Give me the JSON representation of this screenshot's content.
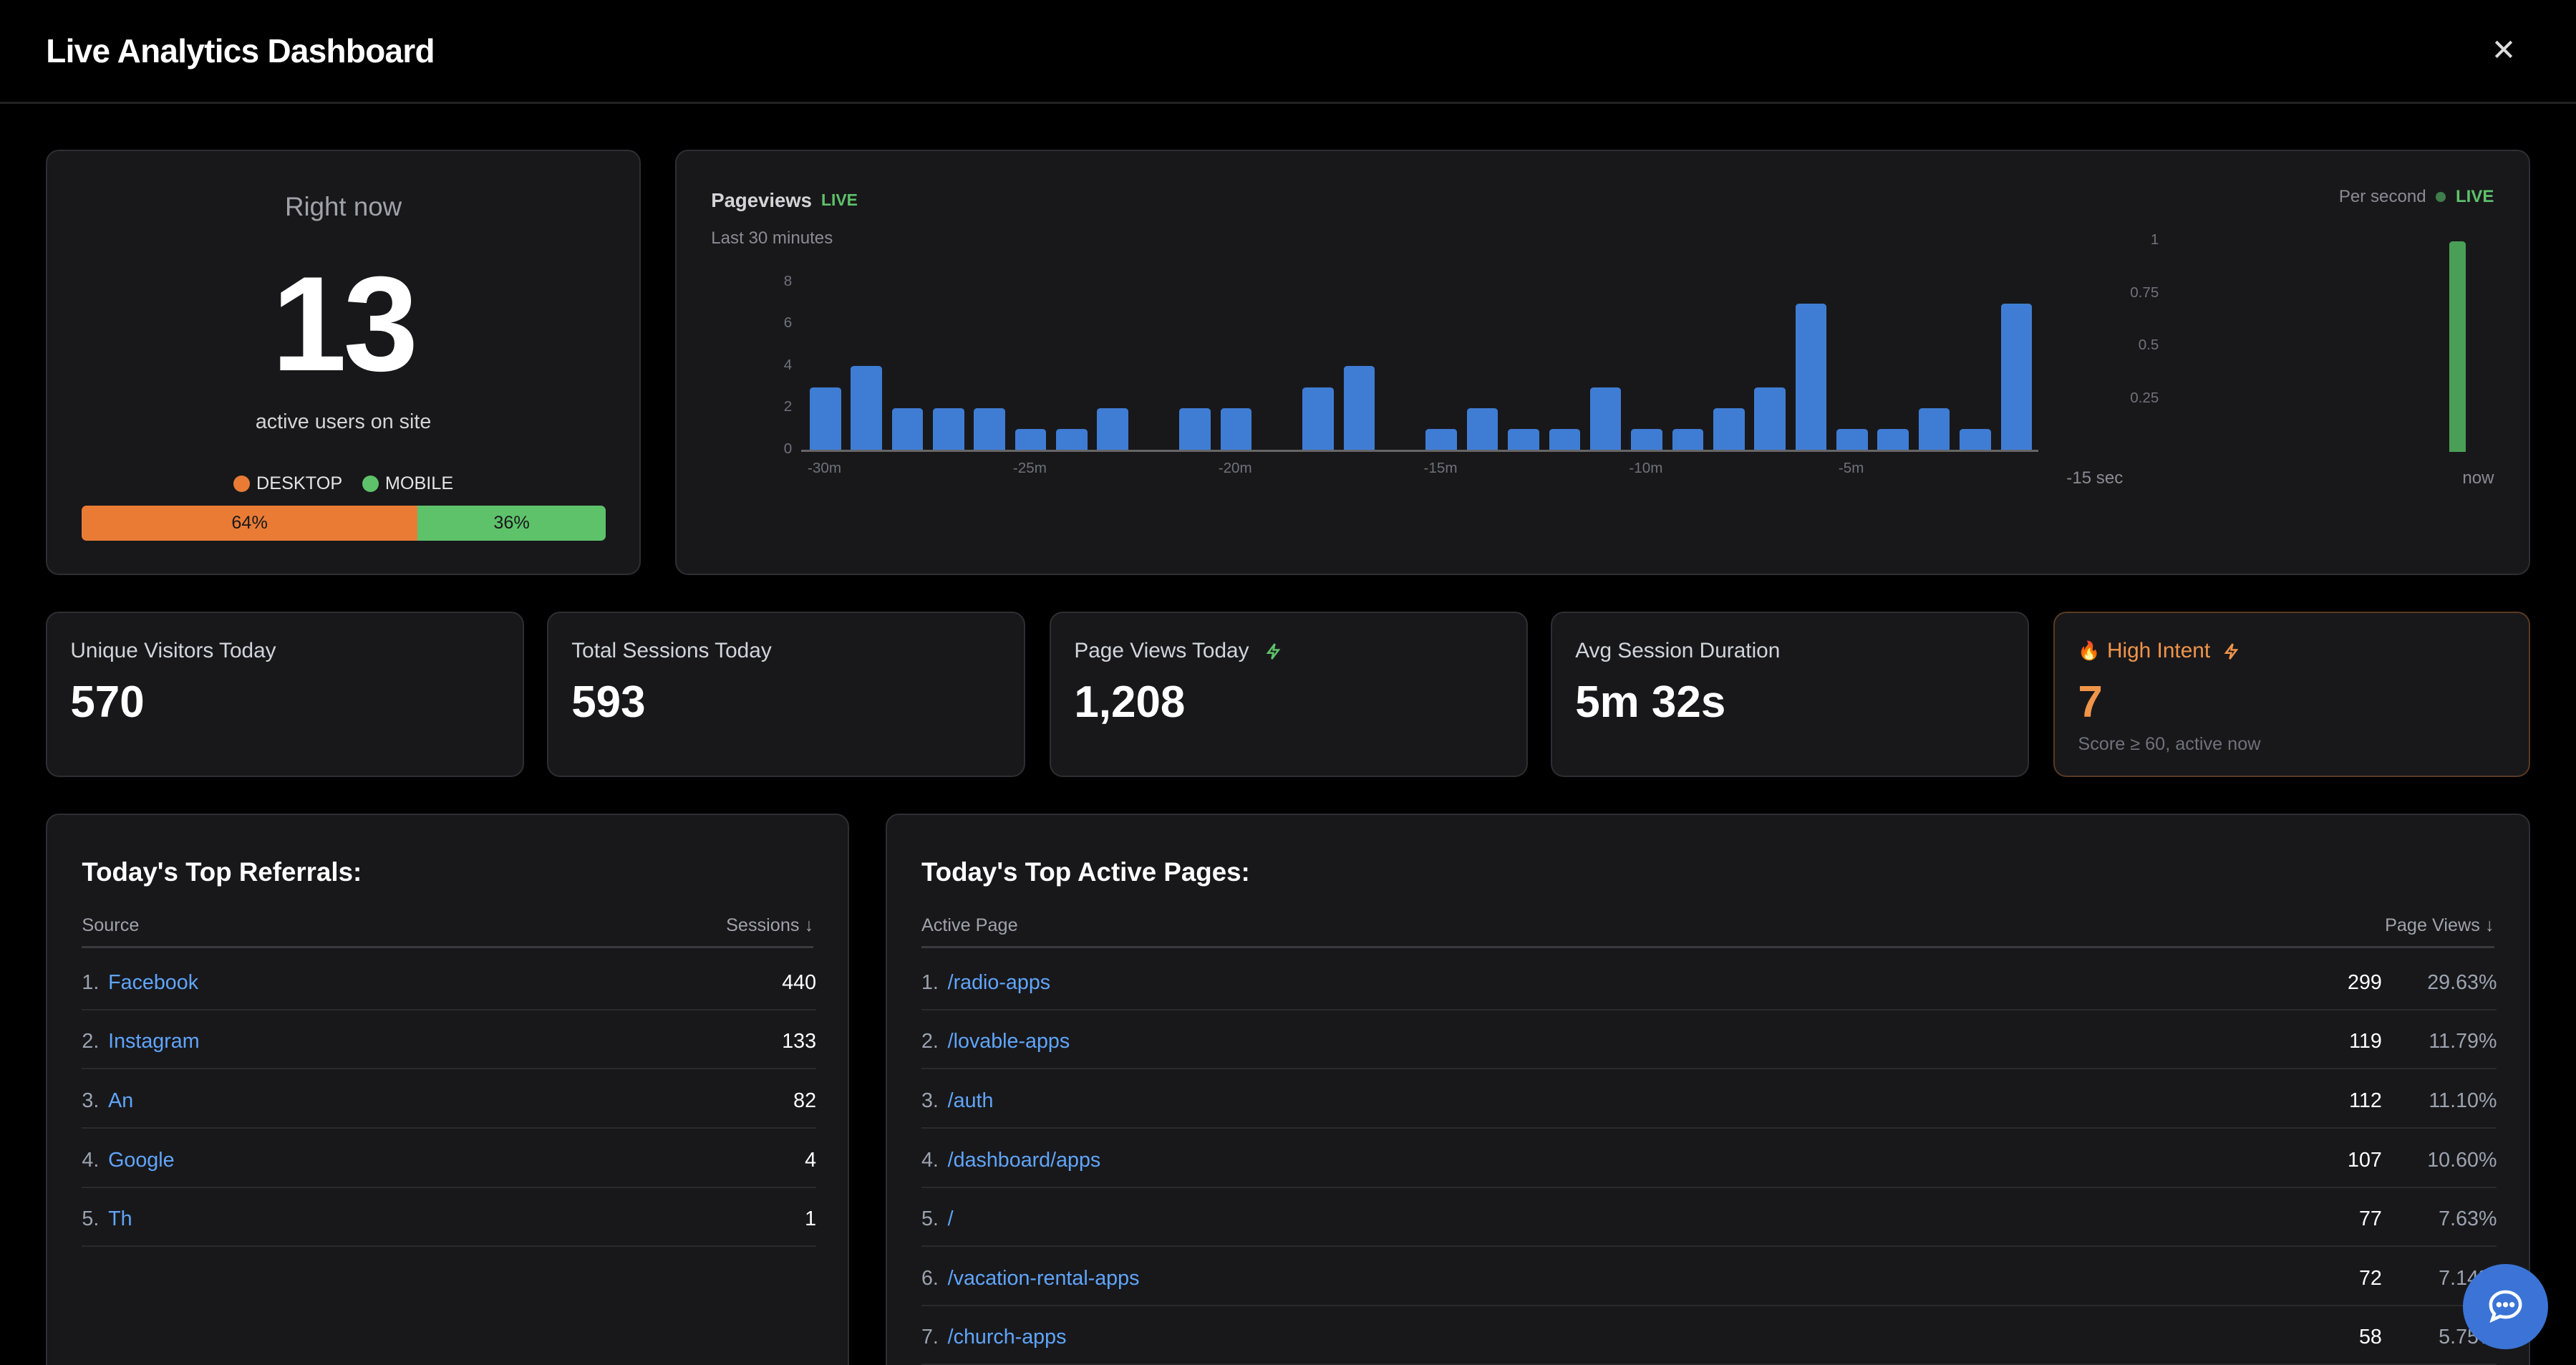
{
  "header": {
    "title": "Live Analytics Dashboard",
    "close_icon": "close-icon"
  },
  "right_now": {
    "label": "Right now",
    "count": "13",
    "sublabel": "active users on site",
    "legend": [
      {
        "label": "DESKTOP",
        "color": "#ea7b35"
      },
      {
        "label": "MOBILE",
        "color": "#5ec26a"
      }
    ],
    "split": {
      "desktop_percent": 64,
      "mobile_percent": 36,
      "desktop_label": "64%",
      "mobile_label": "36%"
    }
  },
  "pageviews": {
    "title": "Pageviews",
    "live": "LIVE",
    "subtitle": "Last 30 minutes",
    "per_second": "Per second",
    "per_second_live": "LIVE"
  },
  "chart_data": [
    {
      "type": "bar",
      "title": "Pageviews",
      "subtitle": "Last 30 minutes",
      "ylim": [
        0,
        8
      ],
      "yticks": [
        "0",
        "2",
        "4",
        "6",
        "8"
      ],
      "xticks": [
        "-30m",
        "-25m",
        "-20m",
        "-15m",
        "-10m",
        "-5m"
      ],
      "values": [
        3,
        4,
        2,
        2,
        2,
        1,
        1,
        2,
        0,
        2,
        2,
        0,
        3,
        4,
        0,
        1,
        2,
        1,
        1,
        3,
        1,
        1,
        2,
        3,
        7,
        1,
        1,
        2,
        1,
        7
      ],
      "color": "#3f7dd4"
    },
    {
      "type": "bar",
      "title": "Per second",
      "ylim": [
        0,
        1
      ],
      "yticks": [
        "0.25",
        "0.5",
        "0.75",
        "1"
      ],
      "xticks": [
        "-15 sec",
        "now"
      ],
      "values": [
        0,
        0,
        0,
        0,
        0,
        0,
        0,
        0,
        0,
        0,
        0,
        0,
        0,
        0,
        1
      ],
      "color": "#4a9f57"
    }
  ],
  "stats": [
    {
      "label": "Unique Visitors Today",
      "value": "570"
    },
    {
      "label": "Total Sessions Today",
      "value": "593"
    },
    {
      "label": "Page Views Today",
      "value": "1,208",
      "icon": "lightning-icon"
    },
    {
      "label": "Avg Session Duration",
      "value": "5m 32s"
    },
    {
      "label": "High Intent",
      "value": "7",
      "sub": "Score ≥ 60, active now",
      "icon": "fire-icon",
      "accent": "#f0944a"
    }
  ],
  "referrals": {
    "title": "Today's Top Referrals:",
    "col_source": "Source",
    "col_sessions": "Sessions ↓",
    "rows": [
      {
        "idx": "1.",
        "name": "Facebook",
        "value": "440"
      },
      {
        "idx": "2.",
        "name": "Instagram",
        "value": "133"
      },
      {
        "idx": "3.",
        "name": "An",
        "value": "82"
      },
      {
        "idx": "4.",
        "name": "Google",
        "value": "4"
      },
      {
        "idx": "5.",
        "name": "Th",
        "value": "1"
      }
    ]
  },
  "pages": {
    "title": "Today's Top Active Pages:",
    "col_page": "Active Page",
    "col_views": "Page Views ↓",
    "rows": [
      {
        "idx": "1.",
        "name": "/radio-apps",
        "value": "299",
        "pct": "29.63%"
      },
      {
        "idx": "2.",
        "name": "/lovable-apps",
        "value": "119",
        "pct": "11.79%"
      },
      {
        "idx": "3.",
        "name": "/auth",
        "value": "112",
        "pct": "11.10%"
      },
      {
        "idx": "4.",
        "name": "/dashboard/apps",
        "value": "107",
        "pct": "10.60%"
      },
      {
        "idx": "5.",
        "name": "/",
        "value": "77",
        "pct": "7.63%"
      },
      {
        "idx": "6.",
        "name": "/vacation-rental-apps",
        "value": "72",
        "pct": "7.14%"
      },
      {
        "idx": "7.",
        "name": "/church-apps",
        "value": "58",
        "pct": "5.75%"
      }
    ]
  },
  "chat": {
    "icon": "chat-icon",
    "color": "#3b74d6"
  }
}
